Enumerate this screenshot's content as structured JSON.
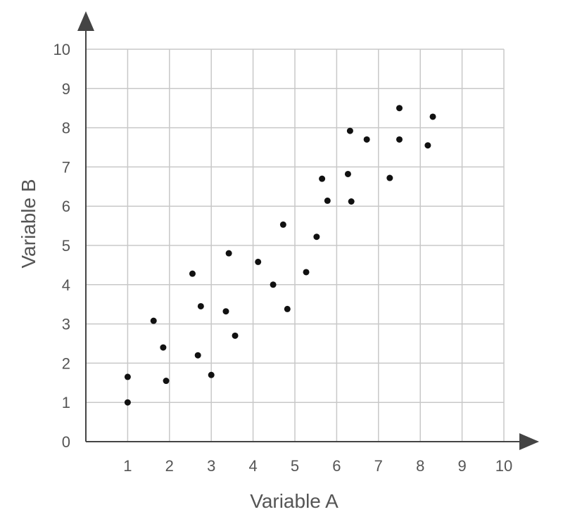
{
  "chart_data": {
    "type": "scatter",
    "xlabel": "Variable A",
    "ylabel": "Variable B",
    "xlim": [
      0,
      10
    ],
    "ylim": [
      0,
      10
    ],
    "grid": true,
    "x_ticks": [
      "1",
      "2",
      "3",
      "4",
      "5",
      "6",
      "7",
      "8",
      "9",
      "10"
    ],
    "y_ticks": [
      "0",
      "1",
      "2",
      "3",
      "4",
      "5",
      "6",
      "7",
      "8",
      "9",
      "10"
    ],
    "series": [
      {
        "points": [
          [
            1.0,
            1.65
          ],
          [
            1.0,
            1.0
          ],
          [
            1.62,
            3.08
          ],
          [
            1.85,
            2.4
          ],
          [
            1.92,
            1.55
          ],
          [
            2.55,
            4.28
          ],
          [
            2.68,
            2.2
          ],
          [
            2.75,
            3.45
          ],
          [
            3.0,
            1.7
          ],
          [
            3.35,
            3.32
          ],
          [
            3.42,
            4.8
          ],
          [
            3.57,
            2.7
          ],
          [
            4.12,
            4.58
          ],
          [
            4.48,
            4.0
          ],
          [
            4.72,
            5.53
          ],
          [
            4.82,
            3.38
          ],
          [
            5.27,
            4.32
          ],
          [
            5.52,
            5.22
          ],
          [
            5.65,
            6.7
          ],
          [
            5.78,
            6.14
          ],
          [
            6.27,
            6.82
          ],
          [
            6.32,
            7.92
          ],
          [
            6.35,
            6.12
          ],
          [
            6.72,
            7.7
          ],
          [
            7.27,
            6.72
          ],
          [
            7.5,
            8.5
          ],
          [
            7.5,
            7.7
          ],
          [
            8.18,
            7.55
          ],
          [
            8.3,
            8.28
          ]
        ]
      }
    ]
  }
}
